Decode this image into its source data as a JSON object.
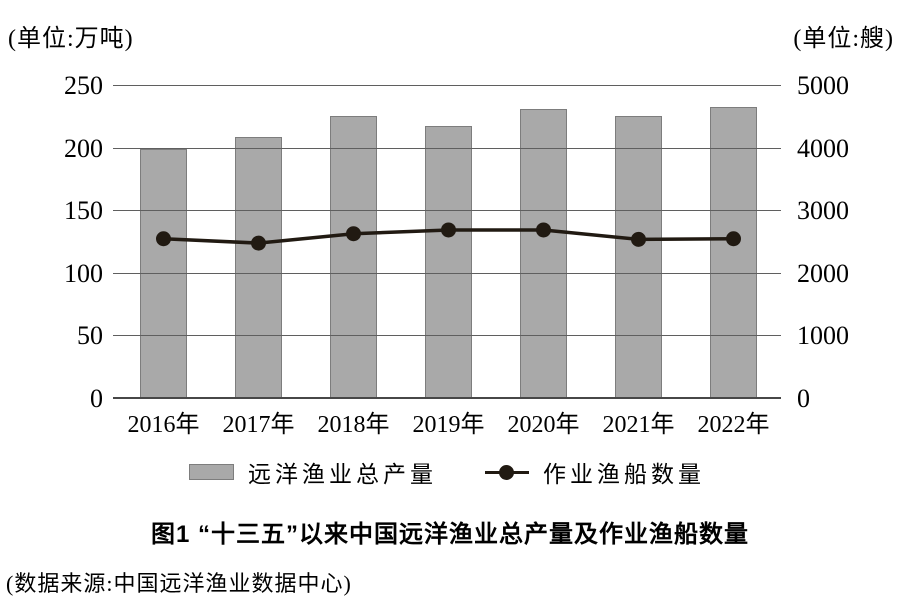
{
  "chart_data": {
    "type": "bar",
    "subtype": "bar-line-combo",
    "title": "图1  “十三五”以来中国远洋渔业总产量及作业渔船数量",
    "source": "(数据来源:中国远洋渔业数据中心)",
    "categories": [
      "2016年",
      "2017年",
      "2018年",
      "2019年",
      "2020年",
      "2021年",
      "2022年"
    ],
    "series": [
      {
        "name": "远洋渔业总产量",
        "type": "bar",
        "axis": "left",
        "values": [
          200,
          209,
          226,
          218,
          232,
          226,
          233
        ]
      },
      {
        "name": "作业渔船数量",
        "type": "line",
        "axis": "right",
        "values": [
          2560,
          2490,
          2640,
          2700,
          2700,
          2550,
          2560
        ]
      }
    ],
    "left_axis": {
      "unit_label": "(单位:万吨)",
      "ticks": [
        0,
        50,
        100,
        150,
        200,
        250
      ],
      "range": [
        0,
        250
      ]
    },
    "right_axis": {
      "unit_label": "(单位:艘)",
      "ticks": [
        0,
        1000,
        2000,
        3000,
        4000,
        5000
      ],
      "range": [
        0,
        5000
      ]
    },
    "grid": true,
    "legend_position": "bottom",
    "legend": [
      {
        "label": "远洋渔业总产量",
        "marker": "bar-swatch"
      },
      {
        "label": "作业渔船数量",
        "marker": "line-dot"
      }
    ],
    "colors": {
      "bar_fill": "#a9a9a9",
      "bar_border": "#7d7d7d",
      "line": "#211a12",
      "grid": "#5f5f5f",
      "axis_line": "#474747",
      "text": "#000000"
    }
  }
}
